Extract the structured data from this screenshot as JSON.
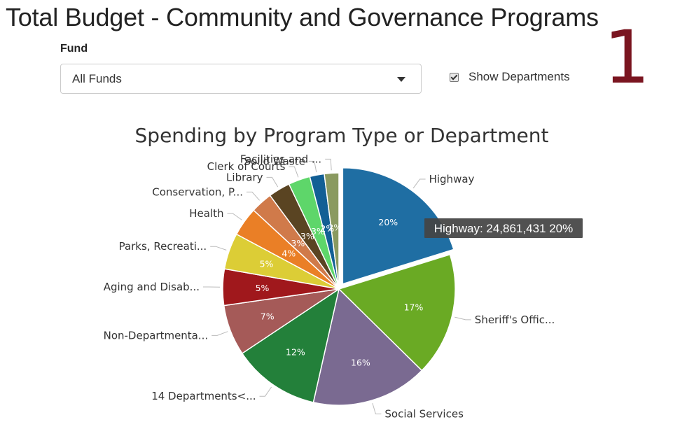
{
  "page": {
    "title": "Total Budget - Community and Governance Programs",
    "number": "1"
  },
  "filters": {
    "fund_label": "Fund",
    "fund_value": "All Funds",
    "show_departments_label": "Show Departments",
    "show_departments_checked": true
  },
  "chart_data": {
    "type": "pie",
    "title": "Spending by Program Type or Department",
    "slices": [
      {
        "label": "Highway",
        "value": 20,
        "pct_label": "20%",
        "color": "#1f6ea3",
        "pulled": true
      },
      {
        "label": "Sheriff's Offic...",
        "value": 17,
        "pct_label": "17%",
        "color": "#6aaa24"
      },
      {
        "label": "Social Services",
        "value": 16,
        "pct_label": "16%",
        "color": "#7a6a91"
      },
      {
        "label": "14 Departments<...",
        "value": 12,
        "pct_label": "12%",
        "color": "#23803a"
      },
      {
        "label": "Non-Departmenta...",
        "value": 7,
        "pct_label": "7%",
        "color": "#a55a58"
      },
      {
        "label": "Aging and Disab...",
        "value": 5,
        "pct_label": "5%",
        "color": "#a0181c"
      },
      {
        "label": "Parks, Recreati...",
        "value": 5,
        "pct_label": "5%",
        "color": "#dccd36"
      },
      {
        "label": "Health",
        "value": 4,
        "pct_label": "4%",
        "color": "#ea7f26"
      },
      {
        "label": "Conservation, P...",
        "value": 3,
        "pct_label": "3%",
        "color": "#d07a4a"
      },
      {
        "label": "Library",
        "value": 3,
        "pct_label": "3%",
        "color": "#5a4422"
      },
      {
        "label": "Clerk of Courts",
        "value": 3,
        "pct_label": "3%",
        "color": "#5ed66a"
      },
      {
        "label": "Solid Waste",
        "value": 2,
        "pct_label": "2%",
        "color": "#125f95"
      },
      {
        "label": "Facilities and ...",
        "value": 2,
        "pct_label": "2%",
        "color": "#8a9a60"
      }
    ],
    "tooltip": {
      "label": "Highway",
      "value": "24,861,431",
      "percent": "20%"
    }
  }
}
